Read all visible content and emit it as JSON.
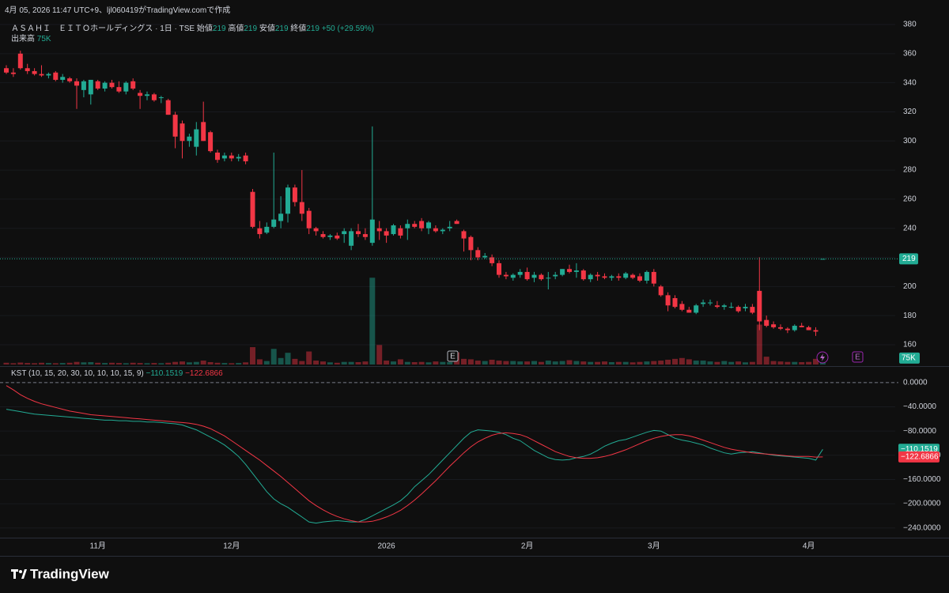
{
  "caption": "4月 05, 2026 11:47 UTC+9、ljl060419がTradingView.comで作成",
  "footer": {
    "logo": "TradingView"
  },
  "chart_data": [
    {
      "type": "candlestick",
      "symbol": "ＡＳＡＨＩ　ＥＩＴＯホールディングス",
      "interval": "1日",
      "exchange": "TSE",
      "ohlc_legend": [
        {
          "label": "始値",
          "value": 219
        },
        {
          "label": "高値",
          "value": 219
        },
        {
          "label": "安値",
          "value": 219
        },
        {
          "label": "終値",
          "value": 219
        }
      ],
      "change": "+50 (+29.59%)",
      "volume_title": "出来高",
      "volume_label": "75K",
      "up_color": "#22ab94",
      "down_color": "#f23645",
      "last_price": 219,
      "earnings_marker": "E",
      "ylim": [
        146.4,
        384.9
      ],
      "yticks": [
        160,
        180,
        200,
        220,
        240,
        260,
        280,
        300,
        320,
        340,
        360,
        380
      ],
      "vlim": [
        0,
        8000000
      ],
      "xticks": [
        {
          "value": 13,
          "label": "11月"
        },
        {
          "value": 32,
          "label": "12月"
        },
        {
          "value": 54,
          "label": "2026"
        },
        {
          "value": 74,
          "label": "2月"
        },
        {
          "value": 92,
          "label": "3月"
        },
        {
          "value": 114,
          "label": "4月"
        }
      ],
      "candles": [
        [
          350,
          352,
          346,
          347
        ],
        [
          347,
          350,
          344,
          346
        ],
        [
          360,
          362,
          349,
          350
        ],
        [
          350,
          353,
          346,
          348
        ],
        [
          348,
          350,
          345,
          346
        ],
        [
          346,
          352,
          344,
          345
        ],
        [
          345,
          347,
          343,
          346
        ],
        [
          347,
          348,
          341,
          342
        ],
        [
          342,
          346,
          340,
          344
        ],
        [
          343,
          344,
          340,
          341
        ],
        [
          341,
          343,
          322,
          338
        ],
        [
          335,
          342,
          330,
          341
        ],
        [
          332,
          342,
          325,
          342
        ],
        [
          341,
          342,
          335,
          336
        ],
        [
          336,
          341,
          334,
          340
        ],
        [
          340,
          342,
          336,
          337
        ],
        [
          337,
          341,
          333,
          334
        ],
        [
          334,
          341,
          332,
          340
        ],
        [
          341,
          343,
          335,
          336
        ],
        [
          333,
          335,
          322,
          331
        ],
        [
          331,
          334,
          328,
          332
        ],
        [
          332,
          333,
          327,
          328
        ],
        [
          330,
          331,
          326,
          330
        ],
        [
          328,
          329,
          318,
          318
        ],
        [
          318,
          320,
          295,
          303
        ],
        [
          312,
          314,
          288,
          300
        ],
        [
          300,
          305,
          296,
          303
        ],
        [
          296,
          313,
          290,
          308
        ],
        [
          313,
          327,
          300,
          300
        ],
        [
          306,
          307,
          292,
          293
        ],
        [
          292,
          294,
          285,
          287
        ],
        [
          288,
          292,
          286,
          290
        ],
        [
          290,
          292,
          286,
          288
        ],
        [
          288,
          291,
          286,
          289
        ],
        [
          290,
          292,
          284,
          286
        ],
        [
          265,
          267,
          240,
          241
        ],
        [
          240,
          245,
          233,
          236
        ],
        [
          237,
          244,
          236,
          241
        ],
        [
          241,
          292,
          240,
          246
        ],
        [
          245,
          262,
          240,
          250
        ],
        [
          250,
          270,
          244,
          268
        ],
        [
          268,
          270,
          255,
          258
        ],
        [
          258,
          280,
          245,
          250
        ],
        [
          252,
          254,
          236,
          240
        ],
        [
          240,
          241,
          235,
          238
        ],
        [
          236,
          238,
          233,
          234
        ],
        [
          234,
          236,
          232,
          235
        ],
        [
          235,
          237,
          232,
          233
        ],
        [
          236,
          240,
          230,
          238
        ],
        [
          228,
          240,
          225,
          238
        ],
        [
          238,
          243,
          234,
          236
        ],
        [
          236,
          240,
          232,
          234
        ],
        [
          230,
          310,
          228,
          246
        ],
        [
          240,
          245,
          232,
          238
        ],
        [
          238,
          240,
          230,
          235
        ],
        [
          236,
          243,
          235,
          242
        ],
        [
          240,
          242,
          233,
          235
        ],
        [
          240,
          246,
          232,
          243
        ],
        [
          243,
          245,
          240,
          241
        ],
        [
          245,
          247,
          238,
          240
        ],
        [
          240,
          245,
          236,
          244
        ],
        [
          240,
          242,
          237,
          238
        ],
        [
          238,
          240,
          236,
          239
        ],
        [
          240,
          245,
          238,
          241
        ],
        [
          245,
          246,
          243,
          243
        ],
        [
          238,
          239,
          224,
          233
        ],
        [
          234,
          235,
          218,
          225
        ],
        [
          225,
          227,
          218,
          220
        ],
        [
          220,
          223,
          219,
          221
        ],
        [
          220,
          222,
          214,
          216
        ],
        [
          216,
          218,
          206,
          208
        ],
        [
          208,
          210,
          205,
          207
        ],
        [
          206,
          209,
          204,
          208
        ],
        [
          208,
          212,
          206,
          210
        ],
        [
          210,
          213,
          204,
          205
        ],
        [
          206,
          210,
          203,
          208
        ],
        [
          208,
          209,
          204,
          205
        ],
        [
          206,
          210,
          198,
          206
        ],
        [
          207,
          210,
          205,
          208
        ],
        [
          208,
          212,
          207,
          212
        ],
        [
          212,
          215,
          209,
          210
        ],
        [
          210,
          216,
          206,
          211
        ],
        [
          211,
          212,
          204,
          205
        ],
        [
          205,
          209,
          203,
          208
        ],
        [
          208,
          210,
          204,
          207
        ],
        [
          207,
          209,
          205,
          206
        ],
        [
          206,
          208,
          204,
          207
        ],
        [
          207,
          209,
          204,
          206
        ],
        [
          206,
          210,
          205,
          209
        ],
        [
          208,
          209,
          205,
          206
        ],
        [
          207,
          209,
          203,
          204
        ],
        [
          204,
          211,
          202,
          210
        ],
        [
          210,
          212,
          200,
          202
        ],
        [
          200,
          201,
          193,
          194
        ],
        [
          194,
          196,
          183,
          187
        ],
        [
          192,
          194,
          185,
          186
        ],
        [
          188,
          190,
          183,
          184
        ],
        [
          184,
          186,
          182,
          182
        ],
        [
          182,
          188,
          181,
          187
        ],
        [
          188,
          191,
          186,
          189
        ],
        [
          189,
          191,
          187,
          189
        ],
        [
          187,
          190,
          185,
          186
        ],
        [
          186,
          188,
          184,
          187
        ],
        [
          186,
          189,
          185,
          186
        ],
        [
          186,
          187,
          182,
          183
        ],
        [
          185,
          188,
          183,
          186
        ],
        [
          186,
          188,
          181,
          182
        ],
        [
          197,
          220,
          170,
          176
        ],
        [
          177,
          180,
          172,
          173
        ],
        [
          174,
          176,
          171,
          172
        ],
        [
          172,
          174,
          170,
          171
        ],
        [
          171,
          172,
          168,
          170
        ],
        [
          170,
          174,
          169,
          173
        ],
        [
          173,
          175,
          172,
          172
        ],
        [
          172,
          173,
          170,
          170
        ],
        [
          170,
          172,
          166,
          169
        ],
        [
          219,
          219,
          219,
          219
        ]
      ],
      "volume": [
        40000,
        30000,
        45000,
        35000,
        30000,
        40000,
        35000,
        30000,
        35000,
        40000,
        60000,
        50000,
        55000,
        40000,
        35000,
        40000,
        35000,
        30000,
        40000,
        35000,
        30000,
        35000,
        30000,
        40000,
        60000,
        70000,
        50000,
        60000,
        90000,
        55000,
        40000,
        35000,
        30000,
        35000,
        50000,
        400000,
        120000,
        80000,
        360000,
        150000,
        270000,
        130000,
        80000,
        300000,
        90000,
        70000,
        50000,
        40000,
        60000,
        60000,
        55000,
        70000,
        2000000,
        450000,
        90000,
        70000,
        120000,
        60000,
        55000,
        60000,
        50000,
        70000,
        60000,
        55000,
        280000,
        130000,
        120000,
        90000,
        80000,
        110000,
        90000,
        80000,
        80000,
        70000,
        70000,
        80000,
        60000,
        90000,
        70000,
        80000,
        100000,
        80000,
        70000,
        60000,
        60000,
        70000,
        55000,
        60000,
        60000,
        50000,
        60000,
        70000,
        80000,
        90000,
        110000,
        130000,
        150000,
        120000,
        90000,
        90000,
        70000,
        60000,
        80000,
        60000,
        70000,
        50000,
        60000,
        920000,
        180000,
        80000,
        70000,
        60000,
        60000,
        55000,
        60000,
        130000,
        75000
      ]
    },
    {
      "type": "line",
      "title": "KST (10, 15, 20, 30, 10, 10, 10, 15, 9)",
      "zero_line": true,
      "ylim": [
        -256,
        22
      ],
      "yticks": [
        {
          "value": 0,
          "label": "0.0000"
        },
        {
          "value": -40,
          "label": "−40.0000"
        },
        {
          "value": -80,
          "label": "−80.0000"
        },
        {
          "value": -120,
          "label": "−120.0000"
        },
        {
          "value": -160,
          "label": "−160.0000"
        },
        {
          "value": -200,
          "label": "−200.0000"
        },
        {
          "value": -240,
          "label": "−240.0000"
        }
      ],
      "series": [
        {
          "color": "#22ab94",
          "last_label": "−110.1519",
          "values": [
            -44,
            -46,
            -48,
            -50,
            -52,
            -53,
            -54,
            -55,
            -56,
            -57,
            -58,
            -59,
            -60,
            -61,
            -62,
            -62,
            -63,
            -63,
            -64,
            -64,
            -65,
            -65,
            -66,
            -67,
            -68,
            -70,
            -74,
            -78,
            -84,
            -90,
            -96,
            -103,
            -112,
            -122,
            -135,
            -150,
            -165,
            -180,
            -192,
            -200,
            -206,
            -214,
            -222,
            -230,
            -232,
            -230,
            -229,
            -228,
            -229,
            -230,
            -230,
            -226,
            -220,
            -214,
            -208,
            -202,
            -195,
            -185,
            -172,
            -162,
            -152,
            -140,
            -128,
            -116,
            -104,
            -92,
            -82,
            -78,
            -79,
            -80,
            -82,
            -86,
            -92,
            -96,
            -104,
            -112,
            -118,
            -124,
            -127,
            -128,
            -127,
            -124,
            -122,
            -118,
            -112,
            -105,
            -100,
            -96,
            -94,
            -90,
            -86,
            -82,
            -79,
            -80,
            -86,
            -92,
            -95,
            -97,
            -100,
            -103,
            -108,
            -112,
            -116,
            -118,
            -116,
            -115,
            -114,
            -116,
            -118,
            -120,
            -121,
            -122,
            -123,
            -124,
            -125,
            -128,
            -110.1519
          ]
        },
        {
          "color": "#f23645",
          "last_label": "−122.6866",
          "values": [
            -5,
            -12,
            -20,
            -26,
            -31,
            -35,
            -38,
            -41,
            -44,
            -47,
            -49,
            -51,
            -53,
            -54,
            -55,
            -56,
            -57,
            -58,
            -59,
            -60,
            -61,
            -62,
            -63,
            -64,
            -65,
            -66,
            -67,
            -69,
            -72,
            -76,
            -82,
            -88,
            -96,
            -104,
            -112,
            -120,
            -128,
            -137,
            -146,
            -155,
            -165,
            -175,
            -185,
            -195,
            -203,
            -210,
            -216,
            -221,
            -225,
            -228,
            -230,
            -230,
            -229,
            -226,
            -222,
            -217,
            -211,
            -203,
            -194,
            -184,
            -173,
            -162,
            -150,
            -138,
            -127,
            -116,
            -106,
            -98,
            -92,
            -87,
            -84,
            -83,
            -84,
            -86,
            -90,
            -96,
            -102,
            -108,
            -114,
            -118,
            -122,
            -124,
            -125,
            -125,
            -124,
            -122,
            -119,
            -115,
            -111,
            -106,
            -101,
            -96,
            -92,
            -89,
            -87,
            -86,
            -86,
            -88,
            -91,
            -95,
            -99,
            -103,
            -107,
            -110,
            -112,
            -114,
            -116,
            -117,
            -118,
            -119,
            -120,
            -121,
            -122,
            -122,
            -122,
            -123,
            -122.6866
          ]
        }
      ]
    }
  ]
}
